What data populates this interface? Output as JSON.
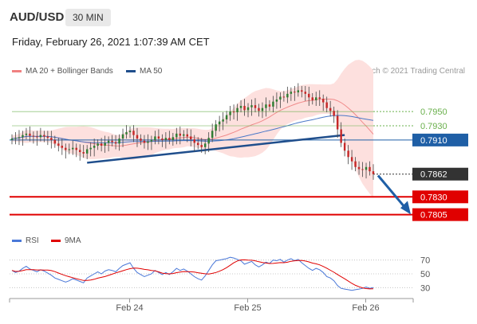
{
  "header": {
    "symbol": "AUD/USD",
    "timeframe": "30 MIN",
    "datetime": "Friday, February 26, 2021 1:07:39 AM CET",
    "research": "Research © 2021 Trading Central"
  },
  "legend": {
    "ma20_label": "MA 20 + Bollinger Bands",
    "ma20_color": "#f08080",
    "ma50_label": "MA 50",
    "ma50_color": "#1f4e8c",
    "rsi_label": "RSI",
    "rsi_color": "#4a78d8",
    "rsi_ma_label": "9MA",
    "rsi_ma_color": "#e00000"
  },
  "chart_data": [
    {
      "type": "candlestick",
      "x_tick_labels": [
        "Feb 24",
        "Feb 25",
        "Feb 26"
      ],
      "ylim": [
        0.779,
        0.7995
      ],
      "price_levels": [
        {
          "value": 0.795,
          "label": "0.7950",
          "color": "#6ab04c",
          "style": "target"
        },
        {
          "value": 0.793,
          "label": "0.7930",
          "color": "#6ab04c",
          "style": "target"
        },
        {
          "value": 0.791,
          "label": "0.7910",
          "color": "#1f5fa6",
          "style": "pivot"
        },
        {
          "value": 0.7862,
          "label": "0.7862",
          "color": "#333333",
          "style": "last"
        },
        {
          "value": 0.783,
          "label": "0.7830",
          "color": "#e00000",
          "style": "support"
        },
        {
          "value": 0.7805,
          "label": "0.7805",
          "color": "#e00000",
          "style": "support"
        }
      ],
      "closes": [
        0.7912,
        0.7913,
        0.7914,
        0.7917,
        0.7919,
        0.7916,
        0.7915,
        0.7914,
        0.7917,
        0.7915,
        0.7913,
        0.791,
        0.7905,
        0.7902,
        0.7899,
        0.7896,
        0.7897,
        0.7899,
        0.7896,
        0.7893,
        0.7891,
        0.7897,
        0.7899,
        0.7902,
        0.7905,
        0.7902,
        0.7906,
        0.7909,
        0.7907,
        0.7905,
        0.7912,
        0.7918,
        0.7921,
        0.7923,
        0.7917,
        0.7912,
        0.7909,
        0.7906,
        0.7908,
        0.791,
        0.7915,
        0.7912,
        0.791,
        0.7913,
        0.791,
        0.7914,
        0.7919,
        0.7916,
        0.7918,
        0.7915,
        0.7911,
        0.7906,
        0.7903,
        0.79,
        0.7905,
        0.7913,
        0.7923,
        0.7932,
        0.7936,
        0.7939,
        0.7945,
        0.795,
        0.7949,
        0.7955,
        0.7958,
        0.7952,
        0.7956,
        0.7959,
        0.7955,
        0.7951,
        0.7955,
        0.796,
        0.7957,
        0.7964,
        0.7967,
        0.7971,
        0.797,
        0.7975,
        0.7978,
        0.7977,
        0.798,
        0.7978,
        0.7975,
        0.797,
        0.7966,
        0.797,
        0.7968,
        0.7963,
        0.7955,
        0.7951,
        0.7944,
        0.7925,
        0.7906,
        0.7895,
        0.7886,
        0.788,
        0.7872,
        0.7869,
        0.7868,
        0.7872,
        0.7866,
        0.7862
      ]
    },
    {
      "type": "line",
      "name": "RSI",
      "x_tick_labels": [
        "Feb 24",
        "Feb 25",
        "Feb 26"
      ],
      "ylim": [
        20,
        80
      ],
      "y_ticks": [
        70,
        50,
        30
      ],
      "values": [
        55,
        52,
        54,
        58,
        61,
        57,
        55,
        53,
        56,
        54,
        51,
        48,
        44,
        42,
        40,
        38,
        40,
        43,
        41,
        39,
        37,
        44,
        47,
        50,
        53,
        50,
        54,
        56,
        55,
        53,
        58,
        62,
        64,
        66,
        58,
        52,
        49,
        46,
        48,
        50,
        55,
        52,
        49,
        52,
        49,
        53,
        58,
        55,
        57,
        54,
        50,
        46,
        43,
        41,
        47,
        55,
        63,
        69,
        70,
        71,
        72,
        74,
        73,
        71,
        69,
        64,
        66,
        68,
        63,
        60,
        63,
        67,
        65,
        70,
        69,
        71,
        67,
        70,
        72,
        69,
        71,
        66,
        62,
        58,
        55,
        58,
        56,
        52,
        46,
        44,
        40,
        33,
        29,
        28,
        27,
        26,
        27,
        28,
        29,
        31,
        29,
        30
      ]
    }
  ]
}
